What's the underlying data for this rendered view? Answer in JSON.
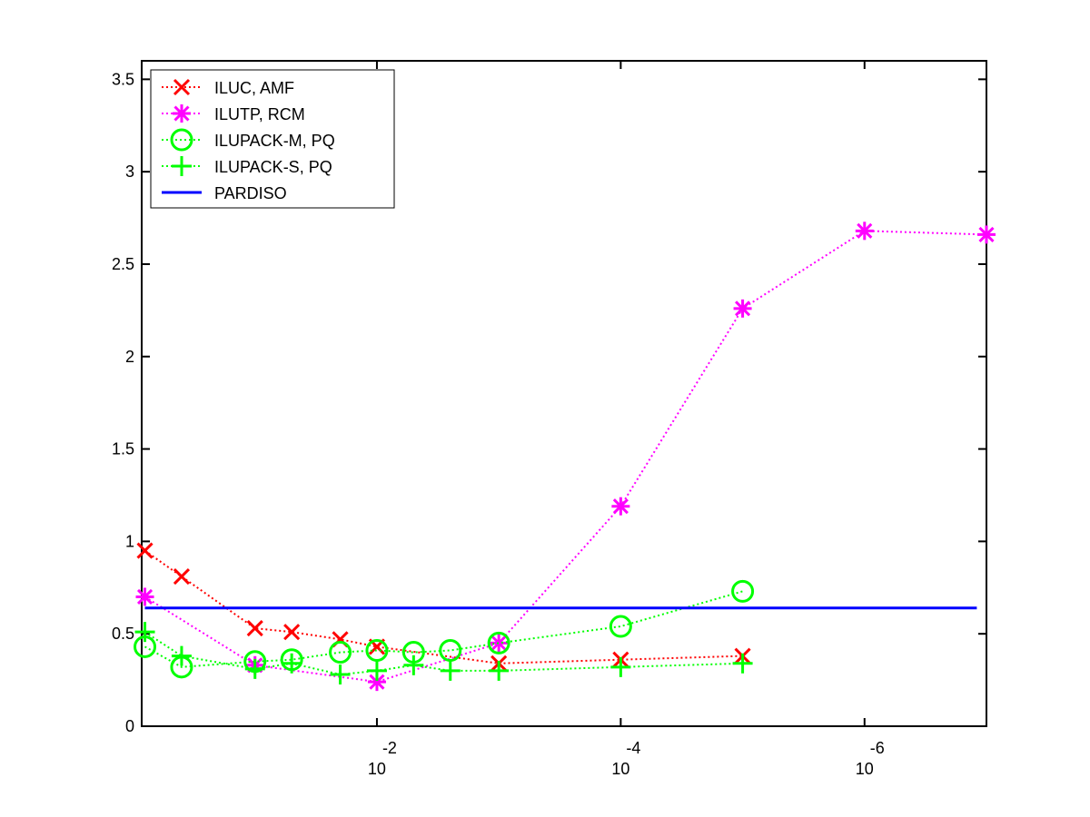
{
  "chart_data": {
    "type": "line",
    "title": "",
    "xlabel": "",
    "ylabel": "",
    "xscale": "log",
    "x_reversed": true,
    "xlim": [
      0.85,
      1e-07
    ],
    "ylim": [
      0,
      3.6
    ],
    "y_ticks": [
      0,
      0.5,
      1,
      1.5,
      2,
      2.5,
      3,
      3.5
    ],
    "y_tick_labels": [
      "0",
      "0.5",
      "1",
      "1.5",
      "2",
      "2.5",
      "3",
      "3.5"
    ],
    "x_ticks": [
      0.01,
      0.0001,
      1e-06
    ],
    "x_tick_labels": [
      {
        "base": "10",
        "exp": "-2"
      },
      {
        "base": "10",
        "exp": "-4"
      },
      {
        "base": "10",
        "exp": "-6"
      }
    ],
    "grid": false,
    "legend_position": "top-left",
    "series": [
      {
        "name": "ILUC, AMF",
        "color": "#ff0000",
        "marker": "x",
        "line_style": "dotted",
        "x": [
          0.8,
          0.4,
          0.1,
          0.05,
          0.02,
          0.01,
          0.001,
          0.0001,
          1e-05
        ],
        "y": [
          0.95,
          0.81,
          0.53,
          0.51,
          0.47,
          0.43,
          0.34,
          0.36,
          0.38
        ]
      },
      {
        "name": "ILUTP, RCM",
        "color": "#ff00ff",
        "marker": "asterisk",
        "line_style": "dotted",
        "x": [
          0.8,
          0.1,
          0.01,
          0.001,
          0.0001,
          1e-05,
          1e-06,
          1e-07
        ],
        "y": [
          0.7,
          0.33,
          0.24,
          0.45,
          1.19,
          2.26,
          2.68,
          2.66
        ]
      },
      {
        "name": "ILUPACK-M, PQ",
        "color": "#00ff00",
        "marker": "circle",
        "line_style": "dotted",
        "x": [
          0.8,
          0.4,
          0.1,
          0.05,
          0.02,
          0.01,
          0.005,
          0.0025,
          0.001,
          0.0001,
          1e-05
        ],
        "y": [
          0.43,
          0.32,
          0.35,
          0.36,
          0.4,
          0.41,
          0.4,
          0.41,
          0.45,
          0.54,
          0.73
        ]
      },
      {
        "name": "ILUPACK-S, PQ",
        "color": "#00ff00",
        "marker": "plus",
        "line_style": "dotted",
        "x": [
          0.8,
          0.4,
          0.1,
          0.05,
          0.02,
          0.01,
          0.005,
          0.0025,
          0.001,
          0.0001,
          1e-05
        ],
        "y": [
          0.51,
          0.38,
          0.31,
          0.34,
          0.28,
          0.3,
          0.33,
          0.3,
          0.3,
          0.32,
          0.34
        ]
      },
      {
        "name": "PARDISO",
        "color": "#0000ff",
        "marker": "none",
        "line_style": "solid",
        "x": [
          0.8,
          1.2e-07
        ],
        "y": [
          0.64,
          0.64
        ]
      }
    ]
  }
}
